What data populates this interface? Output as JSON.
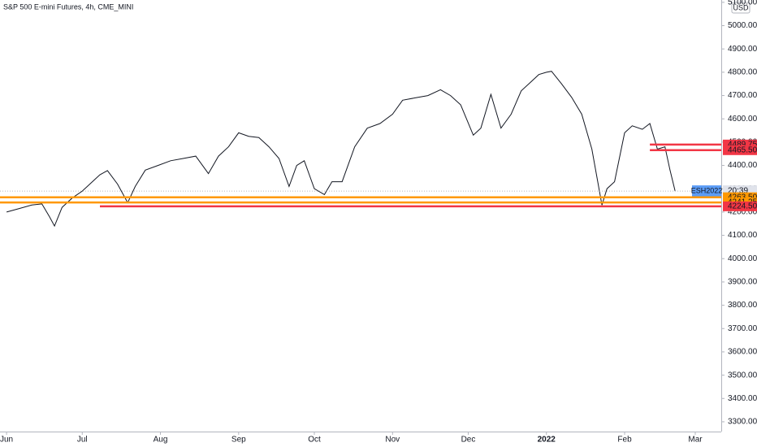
{
  "chart_data": {
    "type": "line",
    "title": "S&P 500 E-mini Futures, 4h, CME_MINI",
    "currency": "USD",
    "symbol": "ESH2022",
    "countdown": "20:39",
    "x": [
      0,
      5,
      10,
      14,
      17,
      19,
      22,
      26,
      30,
      34,
      37,
      40,
      44,
      48,
      51,
      55,
      60,
      65,
      70,
      75,
      80,
      84,
      88,
      92,
      96,
      100,
      104,
      108,
      112,
      115,
      118,
      122,
      126,
      129,
      133,
      138,
      143,
      148,
      153,
      157,
      162,
      167,
      172,
      176,
      180,
      185,
      188,
      192,
      196,
      200,
      204,
      208,
      211,
      214,
      216,
      220,
      224,
      228,
      232,
      236,
      238,
      241,
      245,
      248,
      252,
      255,
      258,
      261,
      263,
      265
    ],
    "series": [
      {
        "name": "ESH2022",
        "color": "#131722",
        "values": [
          4200,
          4215,
          4230,
          4235,
          4180,
          4140,
          4220,
          4260,
          4290,
          4330,
          4360,
          4378,
          4320,
          4240,
          4310,
          4380,
          4400,
          4420,
          4430,
          4440,
          4365,
          4440,
          4480,
          4540,
          4525,
          4520,
          4480,
          4430,
          4310,
          4400,
          4420,
          4300,
          4275,
          4330,
          4330,
          4480,
          4560,
          4580,
          4620,
          4680,
          4690,
          4700,
          4725,
          4700,
          4660,
          4530,
          4560,
          4705,
          4560,
          4620,
          4720,
          4760,
          4790,
          4800,
          4804,
          4750,
          4692,
          4620,
          4470,
          4230,
          4300,
          4330,
          4540,
          4570,
          4555,
          4580,
          4470,
          4480,
          4380,
          4290
        ]
      }
    ],
    "levels": [
      {
        "value": 4489.75,
        "label": "4489.75",
        "color": "#f23645",
        "from": 255
      },
      {
        "value": 4465.5,
        "label": "4465.50",
        "color": "#f23645",
        "from": 255
      },
      {
        "value": 4263.5,
        "label": "4263.50",
        "color": "#ff9800",
        "from": -2.6
      },
      {
        "value": 4241.25,
        "label": "4241.25",
        "color": "#ff9800",
        "from": -2.6
      },
      {
        "value": 4224.5,
        "label": "4224.50",
        "color": "#f23645",
        "from": 37
      }
    ],
    "xlim": [
      -2.6,
      283.3
    ],
    "ylim": [
      3258,
      5110
    ],
    "xticks": [
      {
        "value": 0,
        "label": "Jun"
      },
      {
        "value": 30,
        "label": "Jul"
      },
      {
        "value": 61,
        "label": "Aug"
      },
      {
        "value": 92,
        "label": "Sep"
      },
      {
        "value": 122,
        "label": "Oct"
      },
      {
        "value": 153,
        "label": "Nov"
      },
      {
        "value": 183,
        "label": "Dec"
      },
      {
        "value": 214,
        "label": "2022"
      },
      {
        "value": 245,
        "label": "Feb"
      },
      {
        "value": 273,
        "label": "Mar"
      }
    ],
    "yticks": [
      {
        "value": 3300,
        "label": "3300.00"
      },
      {
        "value": 3400,
        "label": "3400.00"
      },
      {
        "value": 3500,
        "label": "3500.00"
      },
      {
        "value": 3600,
        "label": "3600.00"
      },
      {
        "value": 3700,
        "label": "3700.00"
      },
      {
        "value": 3800,
        "label": "3800.00"
      },
      {
        "value": 3900,
        "label": "3900.00"
      },
      {
        "value": 4000,
        "label": "4000.00"
      },
      {
        "value": 4100,
        "label": "4100.00"
      },
      {
        "value": 4200,
        "label": "4200.00"
      },
      {
        "value": 4300,
        "label": "4300.00"
      },
      {
        "value": 4400,
        "label": "4400.00"
      },
      {
        "value": 4500,
        "label": "4500.00"
      },
      {
        "value": 4600,
        "label": "4600.00"
      },
      {
        "value": 4700,
        "label": "4700.00"
      },
      {
        "value": 4800,
        "label": "4800.00"
      },
      {
        "value": 4900,
        "label": "4900.00"
      },
      {
        "value": 5000,
        "label": "5000.00"
      },
      {
        "value": 5100,
        "label": "5100.00"
      }
    ]
  }
}
